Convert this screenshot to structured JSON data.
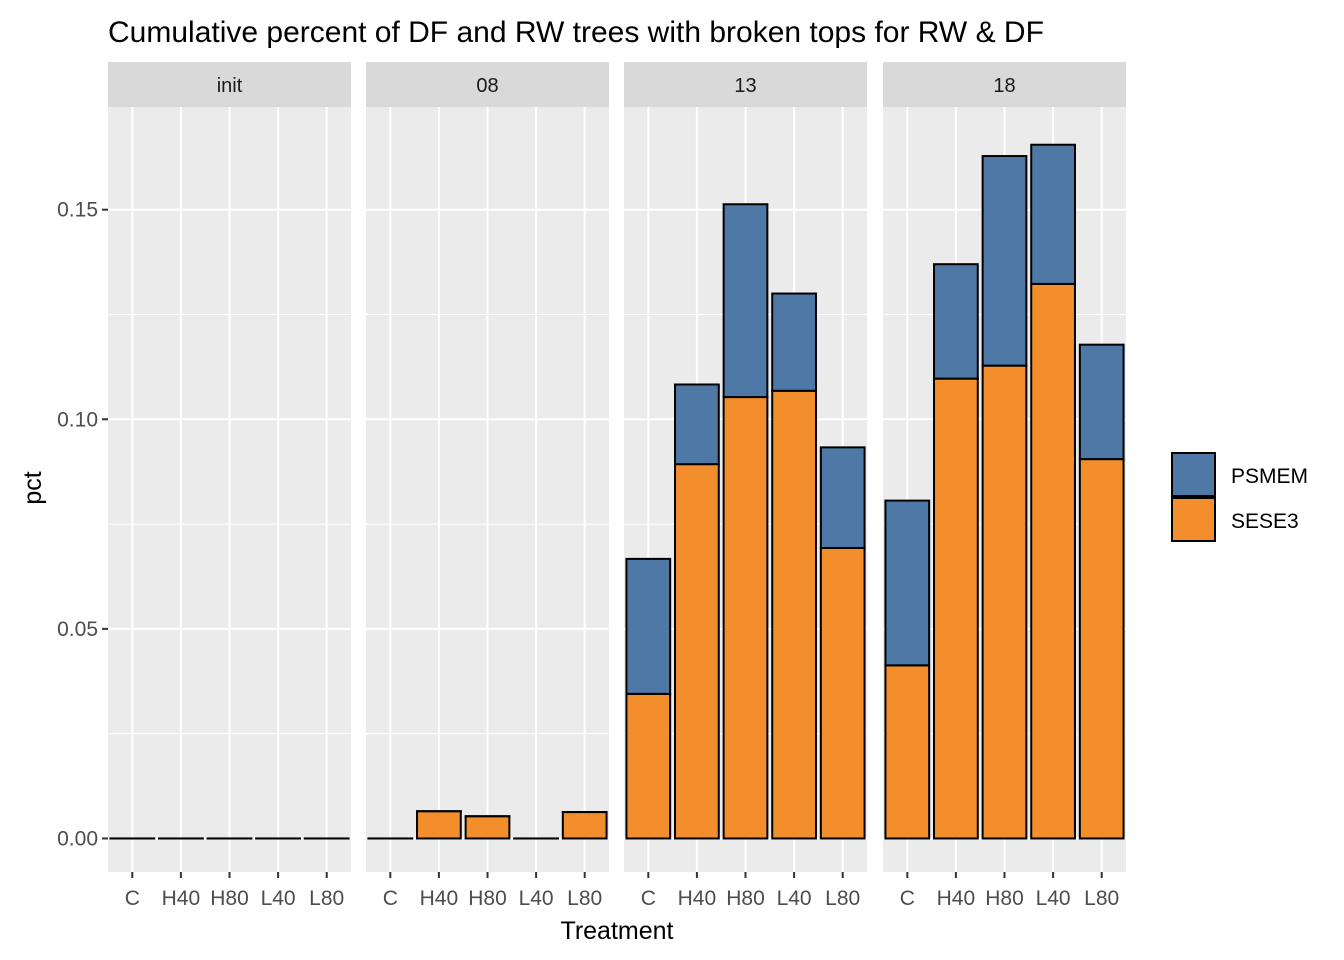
{
  "chart_data": {
    "type": "bar",
    "stacked": true,
    "title": "Cumulative percent of DF and RW trees with broken tops for RW & DF",
    "xlabel": "Treatment",
    "ylabel": "pct",
    "ylim": [
      -0.008,
      0.1745
    ],
    "yticks": [
      "0.00",
      "0.05",
      "0.10",
      "0.15"
    ],
    "ytick_values": [
      0,
      0.05,
      0.1,
      0.15
    ],
    "grid": true,
    "legend_position": "right",
    "categories": [
      "C",
      "H40",
      "H80",
      "L40",
      "L80"
    ],
    "series": [
      {
        "name": "PSMEM",
        "color": "#4E79A7"
      },
      {
        "name": "SESE3",
        "color": "#F28E2B"
      }
    ],
    "facets": [
      {
        "label": "init",
        "values": {
          "SESE3": [
            0,
            0,
            0,
            0,
            0
          ],
          "PSMEM": [
            0,
            0,
            0,
            0,
            0
          ]
        }
      },
      {
        "label": "08",
        "values": {
          "SESE3": [
            0,
            0.0065,
            0.0053,
            0,
            0.0063
          ],
          "PSMEM": [
            0,
            0,
            0,
            0,
            0
          ]
        }
      },
      {
        "label": "13",
        "values": {
          "SESE3": [
            0.0345,
            0.0893,
            0.1053,
            0.1068,
            0.0693
          ],
          "PSMEM": [
            0.0322,
            0.019,
            0.046,
            0.0232,
            0.024
          ]
        }
      },
      {
        "label": "18",
        "values": {
          "SESE3": [
            0.0413,
            0.1097,
            0.1128,
            0.1323,
            0.0905
          ],
          "PSMEM": [
            0.0393,
            0.0273,
            0.05,
            0.0332,
            0.0273
          ]
        }
      }
    ]
  }
}
